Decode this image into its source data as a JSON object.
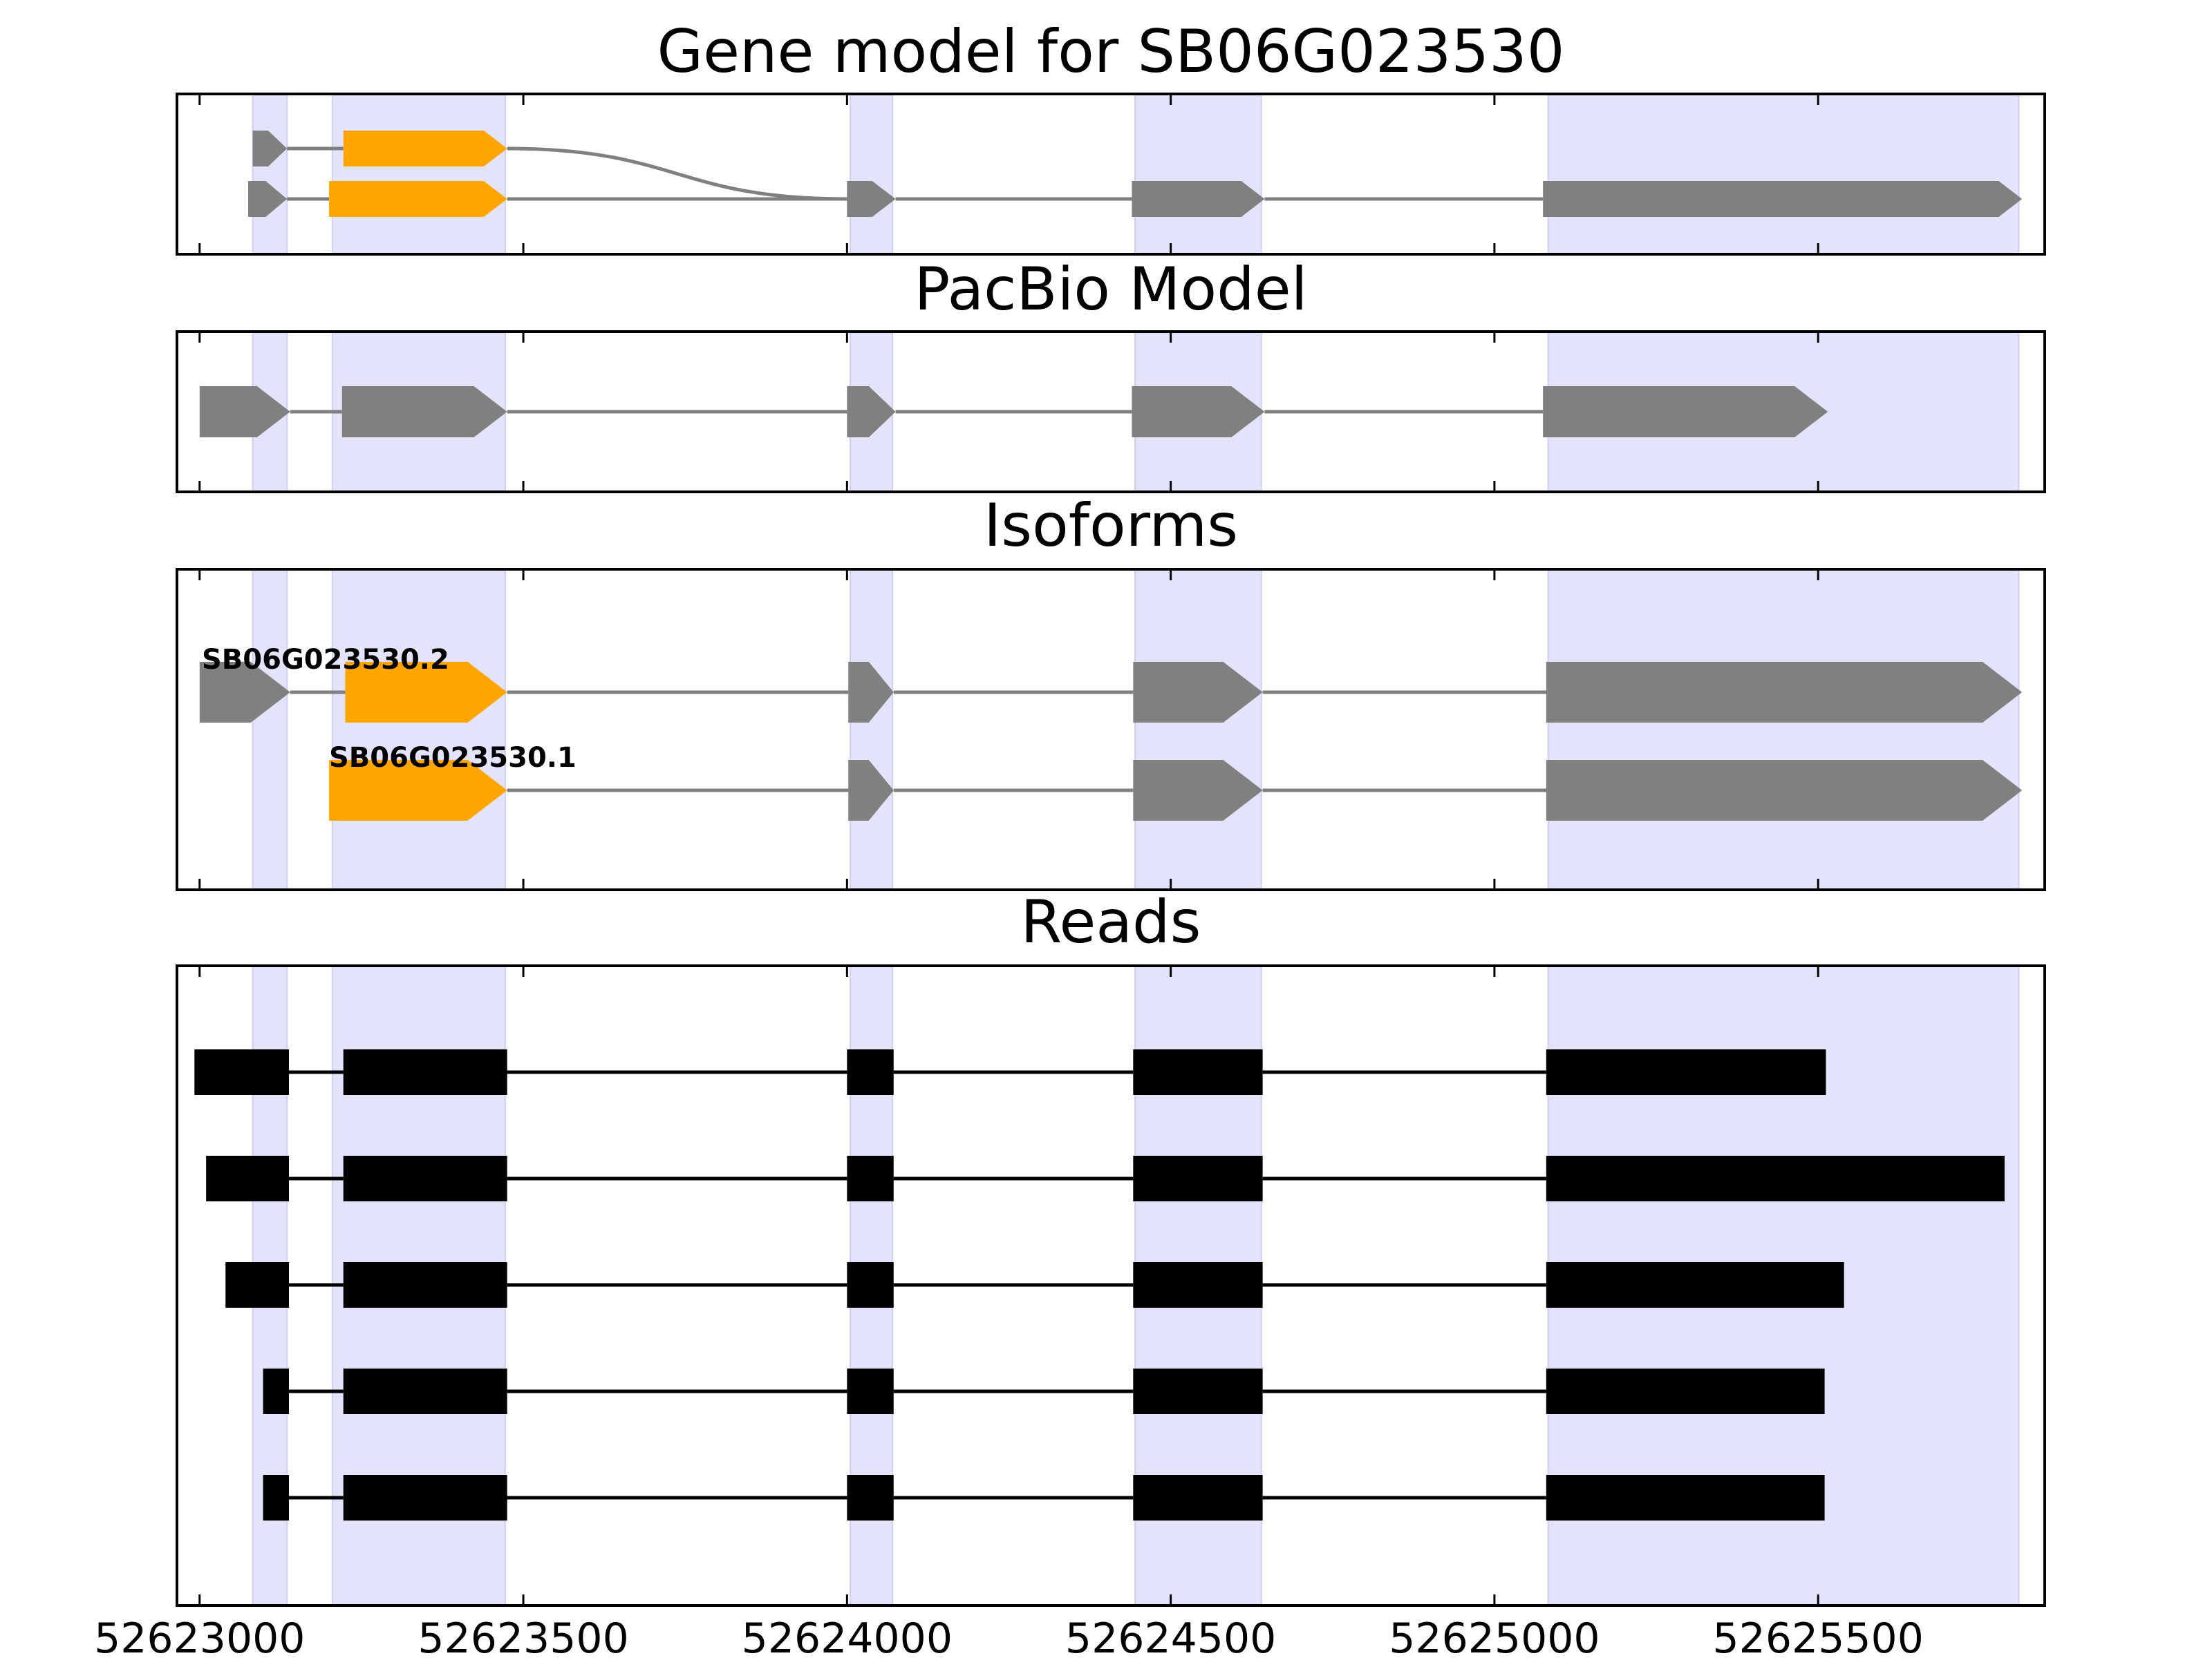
{
  "figure": {
    "titles": {
      "gene": "Gene model for SB06G023530",
      "pacbio": "PacBio Model",
      "isoforms": "Isoforms",
      "reads": "Reads"
    }
  },
  "chart_data": {
    "type": "gene_structure",
    "xlim": [
      52622965,
      52625850
    ],
    "x_ticks": [
      52623000,
      52623500,
      52624000,
      52624500,
      52625000,
      52625500
    ],
    "x_tick_labels": [
      "52623000",
      "52623500",
      "52624000",
      "52624500",
      "52625000",
      "52625500"
    ],
    "colors": {
      "cds": "#ffa500",
      "utr": "#808080",
      "read": "#000000",
      "shade": "#e3e3fb",
      "intron": "#808080"
    },
    "shaded_regions": [
      [
        52623082,
        52623135
      ],
      [
        52623205,
        52623472
      ],
      [
        52624005,
        52624070
      ],
      [
        52624445,
        52624640
      ],
      [
        52625083,
        52625810
      ]
    ],
    "gene_model": {
      "strand": "+",
      "tracks": [
        {
          "exons": [
            {
              "start": 52623082,
              "end": 52623135,
              "kind": "utr"
            },
            {
              "start": 52623222,
              "end": 52623475,
              "kind": "cds"
            }
          ]
        },
        {
          "exons": [
            {
              "start": 52623075,
              "end": 52623135,
              "kind": "utr"
            },
            {
              "start": 52623200,
              "end": 52623475,
              "kind": "cds"
            },
            {
              "start": 52624000,
              "end": 52624075,
              "kind": "utr"
            },
            {
              "start": 52624440,
              "end": 52624645,
              "kind": "utr"
            },
            {
              "start": 52625075,
              "end": 52625815,
              "kind": "utr"
            }
          ]
        }
      ]
    },
    "pacbio_model": {
      "strand": "+",
      "exons": [
        {
          "start": 52623000,
          "end": 52623140,
          "kind": "utr"
        },
        {
          "start": 52623220,
          "end": 52623475,
          "kind": "utr"
        },
        {
          "start": 52624000,
          "end": 52624075,
          "kind": "utr"
        },
        {
          "start": 52624440,
          "end": 52624645,
          "kind": "utr"
        },
        {
          "start": 52625075,
          "end": 52625515,
          "kind": "utr"
        }
      ]
    },
    "isoforms": [
      {
        "name": "SB06G023530.2",
        "exons": [
          {
            "start": 52623000,
            "end": 52623140,
            "kind": "utr"
          },
          {
            "start": 52623225,
            "end": 52623475,
            "kind": "cds"
          },
          {
            "start": 52624002,
            "end": 52624072,
            "kind": "utr"
          },
          {
            "start": 52624442,
            "end": 52624642,
            "kind": "utr"
          },
          {
            "start": 52625080,
            "end": 52625815,
            "kind": "utr"
          }
        ]
      },
      {
        "name": "SB06G023530.1",
        "exons": [
          {
            "start": 52623200,
            "end": 52623475,
            "kind": "cds"
          },
          {
            "start": 52624002,
            "end": 52624072,
            "kind": "utr"
          },
          {
            "start": 52624442,
            "end": 52624642,
            "kind": "utr"
          },
          {
            "start": 52625080,
            "end": 52625815,
            "kind": "utr"
          }
        ]
      }
    ],
    "reads": [
      [
        [
          52622992,
          52623138
        ],
        [
          52623222,
          52623475
        ],
        [
          52624000,
          52624072
        ],
        [
          52624442,
          52624642
        ],
        [
          52625080,
          52625512
        ]
      ],
      [
        [
          52623010,
          52623138
        ],
        [
          52623222,
          52623475
        ],
        [
          52624000,
          52624072
        ],
        [
          52624442,
          52624642
        ],
        [
          52625080,
          52625788
        ]
      ],
      [
        [
          52623040,
          52623138
        ],
        [
          52623222,
          52623475
        ],
        [
          52624000,
          52624072
        ],
        [
          52624442,
          52624642
        ],
        [
          52625080,
          52625540
        ]
      ],
      [
        [
          52623098,
          52623138
        ],
        [
          52623222,
          52623475
        ],
        [
          52624000,
          52624072
        ],
        [
          52624442,
          52624642
        ],
        [
          52625080,
          52625510
        ]
      ],
      [
        [
          52623098,
          52623138
        ],
        [
          52623222,
          52623475
        ],
        [
          52624000,
          52624072
        ],
        [
          52624442,
          52624642
        ],
        [
          52625080,
          52625510
        ]
      ]
    ]
  }
}
